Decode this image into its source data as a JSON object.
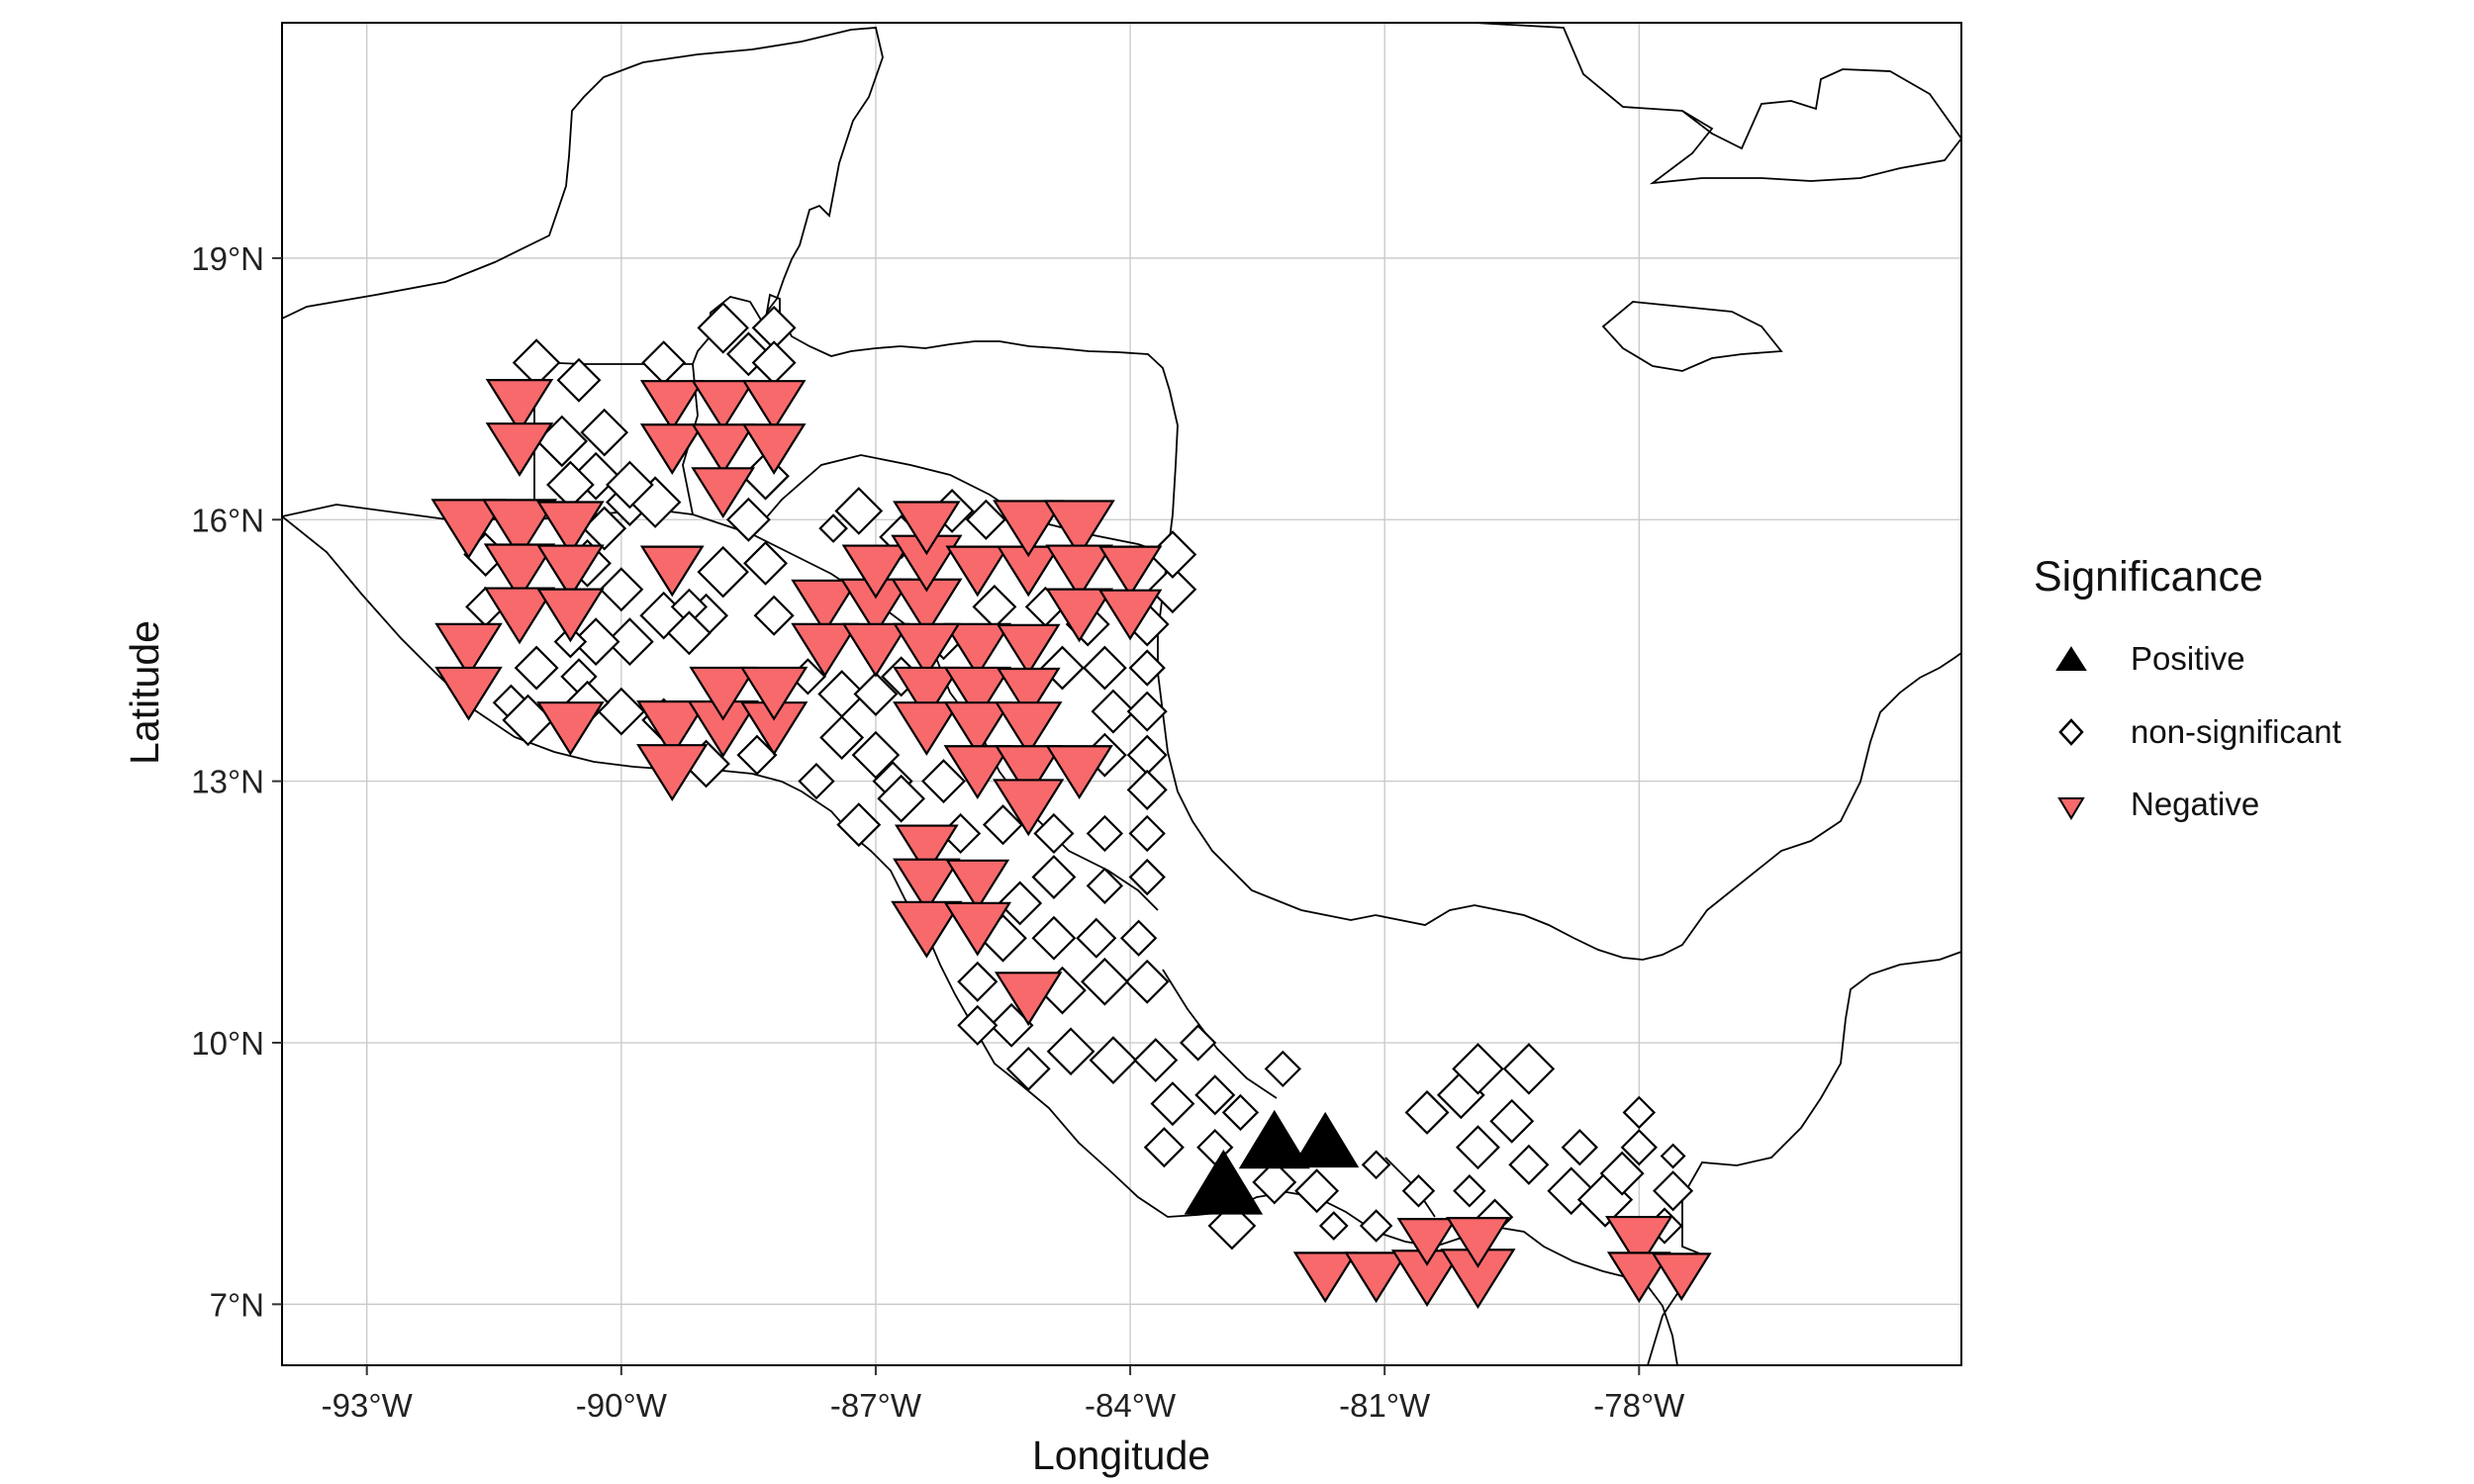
{
  "chart_data": {
    "type": "scatter",
    "title": "",
    "xlabel": "Longitude",
    "ylabel": "Latitude",
    "xlim": [
      -94.0,
      -74.2
    ],
    "ylim": [
      6.3,
      21.7
    ],
    "x_ticks": [
      -93,
      -90,
      -87,
      -84,
      -81,
      -78
    ],
    "x_tick_labels": [
      "-93°W",
      "-90°W",
      "-87°W",
      "-84°W",
      "-81°W",
      "-78°W"
    ],
    "y_ticks": [
      7,
      10,
      13,
      16,
      19
    ],
    "y_tick_labels": [
      "7°N",
      "10°N",
      "13°N",
      "16°N",
      "19°N"
    ],
    "grid": true,
    "legend": {
      "title": "Significance",
      "position": "right",
      "entries": [
        {
          "key": "positive",
          "label": "Positive",
          "shape": "triangle-up",
          "color": "#000000"
        },
        {
          "key": "ns",
          "label": "non-significant",
          "shape": "diamond-open",
          "color": "#000000"
        },
        {
          "key": "negative",
          "label": "Negative",
          "shape": "triangle-down",
          "color": "#F8696B"
        }
      ]
    },
    "colors": {
      "positive": "#000000",
      "negative": "#F8696B",
      "ns_stroke": "#000000"
    },
    "series": [
      {
        "key": "positive",
        "points": [
          [
            -82.9,
            8.3,
            1.0
          ],
          [
            -82.3,
            8.8,
            0.9
          ],
          [
            -81.7,
            8.8,
            0.85
          ]
        ]
      },
      {
        "key": "negative",
        "points": [
          [
            -91.2,
            17.4,
            0.85
          ],
          [
            -91.2,
            16.9,
            0.85
          ],
          [
            -89.4,
            17.4,
            0.8
          ],
          [
            -88.8,
            17.4,
            0.8
          ],
          [
            -88.2,
            17.4,
            0.8
          ],
          [
            -89.4,
            16.9,
            0.8
          ],
          [
            -88.8,
            16.9,
            0.8
          ],
          [
            -88.2,
            16.9,
            0.8
          ],
          [
            -88.8,
            16.4,
            0.8
          ],
          [
            -91.8,
            16.0,
            0.95
          ],
          [
            -91.2,
            16.0,
            0.95
          ],
          [
            -90.6,
            16.0,
            0.85
          ],
          [
            -91.2,
            15.5,
            0.9
          ],
          [
            -90.6,
            15.5,
            0.85
          ],
          [
            -89.4,
            15.5,
            0.8
          ],
          [
            -91.2,
            15.0,
            0.9
          ],
          [
            -90.6,
            15.0,
            0.85
          ],
          [
            -91.8,
            14.6,
            0.85
          ],
          [
            -91.8,
            14.1,
            0.85
          ],
          [
            -90.6,
            13.7,
            0.85
          ],
          [
            -89.4,
            13.7,
            0.9
          ],
          [
            -88.8,
            13.7,
            0.9
          ],
          [
            -88.2,
            13.7,
            0.85
          ],
          [
            -89.4,
            13.2,
            0.9
          ],
          [
            -88.8,
            14.1,
            0.85
          ],
          [
            -88.2,
            14.1,
            0.85
          ],
          [
            -87.6,
            15.1,
            0.85
          ],
          [
            -87.0,
            15.1,
            0.9
          ],
          [
            -87.0,
            15.5,
            0.85
          ],
          [
            -87.6,
            14.6,
            0.85
          ],
          [
            -87.0,
            14.6,
            0.85
          ],
          [
            -86.4,
            15.1,
            0.9
          ],
          [
            -86.4,
            15.6,
            0.9
          ],
          [
            -86.4,
            16.0,
            0.85
          ],
          [
            -85.8,
            15.5,
            0.8
          ],
          [
            -85.2,
            15.5,
            0.8
          ],
          [
            -85.2,
            16.0,
            0.9
          ],
          [
            -84.6,
            16.0,
            0.9
          ],
          [
            -84.6,
            15.5,
            0.85
          ],
          [
            -84.0,
            15.5,
            0.8
          ],
          [
            -84.6,
            15.0,
            0.85
          ],
          [
            -84.0,
            15.0,
            0.8
          ],
          [
            -85.8,
            14.6,
            0.85
          ],
          [
            -85.2,
            14.6,
            0.8
          ],
          [
            -86.4,
            14.6,
            0.85
          ],
          [
            -86.4,
            14.1,
            0.85
          ],
          [
            -85.8,
            14.1,
            0.85
          ],
          [
            -85.2,
            14.1,
            0.8
          ],
          [
            -86.4,
            13.7,
            0.85
          ],
          [
            -85.8,
            13.7,
            0.85
          ],
          [
            -85.2,
            13.7,
            0.85
          ],
          [
            -85.8,
            13.2,
            0.85
          ],
          [
            -85.2,
            13.2,
            0.85
          ],
          [
            -84.6,
            13.2,
            0.85
          ],
          [
            -85.2,
            12.8,
            0.9
          ],
          [
            -86.4,
            12.3,
            0.8
          ],
          [
            -86.4,
            11.9,
            0.85
          ],
          [
            -85.8,
            11.9,
            0.8
          ],
          [
            -86.4,
            11.4,
            0.9
          ],
          [
            -85.8,
            11.4,
            0.85
          ],
          [
            -85.2,
            10.6,
            0.85
          ],
          [
            -81.7,
            7.4,
            0.8
          ],
          [
            -81.1,
            7.4,
            0.8
          ],
          [
            -80.5,
            7.4,
            0.9
          ],
          [
            -79.9,
            7.4,
            0.95
          ],
          [
            -80.5,
            7.8,
            0.75
          ],
          [
            -79.9,
            7.8,
            0.8
          ],
          [
            -78.0,
            7.8,
            0.85
          ],
          [
            -78.0,
            7.4,
            0.8
          ],
          [
            -77.5,
            7.4,
            0.75
          ]
        ]
      },
      {
        "key": "ns",
        "points": [
          [
            -89.5,
            17.8,
            0.55
          ],
          [
            -88.8,
            18.2,
            0.65
          ],
          [
            -88.5,
            17.9,
            0.55
          ],
          [
            -88.2,
            18.2,
            0.55
          ],
          [
            -88.2,
            17.8,
            0.55
          ],
          [
            -91.0,
            17.8,
            0.6
          ],
          [
            -90.5,
            17.6,
            0.55
          ],
          [
            -90.2,
            17.0,
            0.6
          ],
          [
            -90.7,
            16.9,
            0.65
          ],
          [
            -90.3,
            16.5,
            0.6
          ],
          [
            -90.6,
            16.4,
            0.6
          ],
          [
            -89.9,
            16.2,
            0.6
          ],
          [
            -89.6,
            16.2,
            0.65
          ],
          [
            -88.3,
            16.5,
            0.6
          ],
          [
            -88.5,
            16.0,
            0.55
          ],
          [
            -87.5,
            15.9,
            0.35
          ],
          [
            -89.5,
            14.9,
            0.6
          ],
          [
            -89.9,
            14.6,
            0.6
          ],
          [
            -90.3,
            14.6,
            0.6
          ],
          [
            -90.6,
            14.6,
            0.4
          ],
          [
            -91.6,
            15.6,
            0.55
          ],
          [
            -91.6,
            15.0,
            0.5
          ],
          [
            -90.5,
            14.2,
            0.45
          ],
          [
            -89.0,
            14.9,
            0.55
          ],
          [
            -88.8,
            15.4,
            0.65
          ],
          [
            -89.2,
            15.0,
            0.45
          ],
          [
            -90.2,
            15.9,
            0.55
          ],
          [
            -89.9,
            16.4,
            0.6
          ],
          [
            -90.0,
            15.2,
            0.55
          ],
          [
            -90.4,
            15.5,
            0.6
          ],
          [
            -91.0,
            14.3,
            0.55
          ],
          [
            -91.3,
            13.9,
            0.45
          ],
          [
            -91.1,
            13.7,
            0.65
          ],
          [
            -90.0,
            13.8,
            0.6
          ],
          [
            -90.4,
            13.9,
            0.55
          ],
          [
            -89.2,
            14.7,
            0.55
          ],
          [
            -88.3,
            15.5,
            0.55
          ],
          [
            -88.2,
            14.9,
            0.5
          ],
          [
            -87.8,
            14.2,
            0.45
          ],
          [
            -87.4,
            14.0,
            0.6
          ],
          [
            -87.0,
            14.0,
            0.55
          ],
          [
            -86.7,
            14.2,
            0.5
          ],
          [
            -87.4,
            13.5,
            0.55
          ],
          [
            -87.7,
            13.0,
            0.45
          ],
          [
            -87.0,
            13.3,
            0.6
          ],
          [
            -86.8,
            13.0,
            0.5
          ],
          [
            -87.2,
            12.5,
            0.55
          ],
          [
            -86.7,
            12.8,
            0.6
          ],
          [
            -86.2,
            13.0,
            0.55
          ],
          [
            -86.0,
            12.4,
            0.5
          ],
          [
            -85.5,
            12.5,
            0.5
          ],
          [
            -84.9,
            12.4,
            0.5
          ],
          [
            -84.3,
            12.4,
            0.45
          ],
          [
            -84.3,
            11.8,
            0.45
          ],
          [
            -84.9,
            11.9,
            0.55
          ],
          [
            -85.3,
            11.6,
            0.55
          ],
          [
            -85.5,
            11.2,
            0.6
          ],
          [
            -84.9,
            11.2,
            0.55
          ],
          [
            -84.4,
            11.2,
            0.5
          ],
          [
            -83.9,
            11.2,
            0.45
          ],
          [
            -83.8,
            10.7,
            0.55
          ],
          [
            -84.3,
            10.7,
            0.6
          ],
          [
            -84.8,
            10.6,
            0.6
          ],
          [
            -85.4,
            10.2,
            0.55
          ],
          [
            -85.8,
            10.2,
            0.5
          ],
          [
            -85.8,
            10.7,
            0.5
          ],
          [
            -85.2,
            9.7,
            0.55
          ],
          [
            -84.7,
            9.9,
            0.6
          ],
          [
            -84.2,
            9.8,
            0.6
          ],
          [
            -83.7,
            9.8,
            0.55
          ],
          [
            -83.2,
            10.0,
            0.45
          ],
          [
            -83.5,
            9.3,
            0.55
          ],
          [
            -83.0,
            9.4,
            0.5
          ],
          [
            -83.6,
            8.8,
            0.5
          ],
          [
            -83.0,
            8.8,
            0.45
          ],
          [
            -82.7,
            9.2,
            0.45
          ],
          [
            -82.2,
            9.7,
            0.45
          ],
          [
            -82.8,
            7.9,
            0.6
          ],
          [
            -82.3,
            8.4,
            0.55
          ],
          [
            -81.8,
            8.3,
            0.55
          ],
          [
            -81.6,
            7.9,
            0.35
          ],
          [
            -81.1,
            8.6,
            0.35
          ],
          [
            -81.1,
            7.9,
            0.4
          ],
          [
            -80.6,
            8.3,
            0.4
          ],
          [
            -80.5,
            9.2,
            0.55
          ],
          [
            -80.1,
            9.4,
            0.6
          ],
          [
            -79.9,
            9.7,
            0.65
          ],
          [
            -79.3,
            9.7,
            0.65
          ],
          [
            -79.5,
            9.1,
            0.55
          ],
          [
            -79.9,
            8.8,
            0.55
          ],
          [
            -80.0,
            8.3,
            0.4
          ],
          [
            -79.7,
            8.0,
            0.45
          ],
          [
            -79.3,
            8.6,
            0.5
          ],
          [
            -78.8,
            8.3,
            0.6
          ],
          [
            -78.7,
            8.8,
            0.45
          ],
          [
            -78.4,
            8.2,
            0.7
          ],
          [
            -78.2,
            8.5,
            0.55
          ],
          [
            -78.0,
            8.8,
            0.45
          ],
          [
            -78.0,
            9.2,
            0.4
          ],
          [
            -77.6,
            8.3,
            0.5
          ],
          [
            -77.7,
            7.9,
            0.45
          ],
          [
            -77.6,
            8.7,
            0.3
          ],
          [
            -84.3,
            13.3,
            0.55
          ],
          [
            -84.2,
            13.8,
            0.55
          ],
          [
            -83.8,
            13.8,
            0.5
          ],
          [
            -83.8,
            13.3,
            0.5
          ],
          [
            -83.8,
            12.9,
            0.5
          ],
          [
            -83.8,
            12.4,
            0.45
          ],
          [
            -83.8,
            11.9,
            0.45
          ],
          [
            -84.3,
            14.3,
            0.55
          ],
          [
            -83.8,
            14.3,
            0.45
          ],
          [
            -84.8,
            14.3,
            0.55
          ],
          [
            -83.8,
            14.8,
            0.55
          ],
          [
            -83.5,
            15.2,
            0.6
          ],
          [
            -83.5,
            15.6,
            0.6
          ],
          [
            -84.5,
            14.8,
            0.55
          ],
          [
            -86.1,
            16.1,
            0.55
          ],
          [
            -85.7,
            16.0,
            0.5
          ],
          [
            -86.7,
            15.8,
            0.55
          ],
          [
            -87.2,
            16.1,
            0.6
          ],
          [
            -86.2,
            14.6,
            0.45
          ],
          [
            -85.6,
            15.0,
            0.55
          ],
          [
            -85.0,
            15.0,
            0.5
          ],
          [
            -89.5,
            13.7,
            0.55
          ],
          [
            -89.0,
            13.2,
            0.6
          ],
          [
            -88.4,
            13.3,
            0.5
          ]
        ]
      }
    ]
  }
}
